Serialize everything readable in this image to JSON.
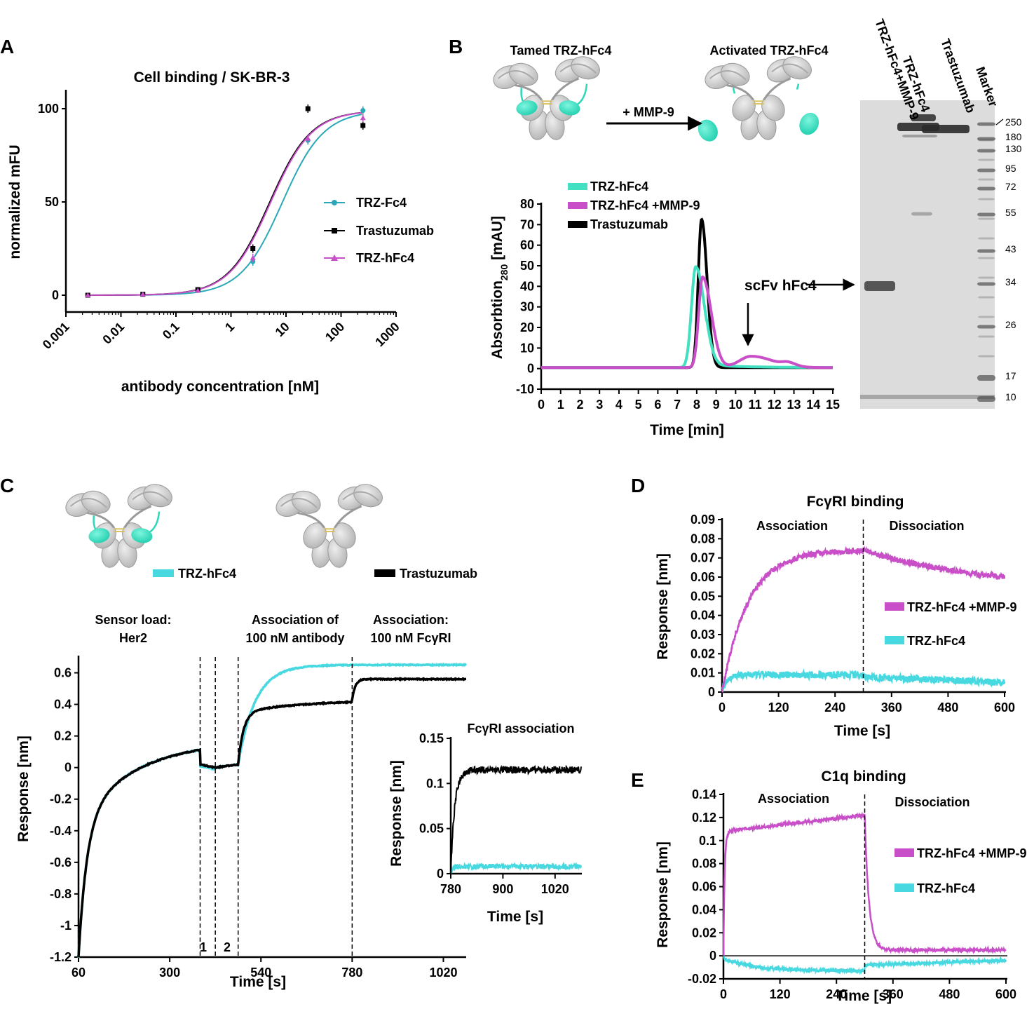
{
  "colors": {
    "trz_fc4": "#2aa8b8",
    "trastuzumab": "#000000",
    "trz_hfc4_magenta": "#c84fc8",
    "trz_hfc4_teal": "#40e0c0",
    "trz_hfc4_cyan": "#48d8e0",
    "gel_bg": "#dcdcdc",
    "antibody_gray": "#cfcfcf",
    "scfv": "#40e8c8"
  },
  "panel_letters": [
    "A",
    "B",
    "C",
    "D",
    "E"
  ],
  "chart_data": [
    {
      "id": "A",
      "type": "scatter",
      "title": "Cell binding / SK-BR-3",
      "xlabel": "antibody concentration [nM]",
      "ylabel": "normalized mFU",
      "xscale": "log",
      "xlim": [
        0.001,
        1000
      ],
      "ylim": [
        -5,
        110
      ],
      "xticks": [
        "0.001",
        "0.01",
        "0.1",
        "1",
        "10",
        "100",
        "1000"
      ],
      "yticks": [
        "0",
        "50",
        "100"
      ],
      "series": [
        {
          "name": "TRZ-Fc4",
          "color": "#2aa8b8",
          "marker": "circle",
          "x": [
            0.0025,
            0.025,
            0.25,
            2.5,
            25,
            250
          ],
          "y": [
            0,
            0.5,
            2.5,
            18,
            83,
            99
          ],
          "ec50": 8.5
        },
        {
          "name": "Trastuzumab",
          "color": "#000000",
          "marker": "square",
          "x": [
            0.0025,
            0.025,
            0.25,
            2.5,
            25,
            250
          ],
          "y": [
            0,
            0.5,
            3,
            25,
            100,
            91
          ],
          "ec50": 5.0
        },
        {
          "name": "TRZ-hFc4",
          "color": "#c84fc8",
          "marker": "triangle",
          "x": [
            0.0025,
            0.025,
            0.25,
            2.5,
            25,
            250
          ],
          "y": [
            0,
            0.5,
            2.5,
            20,
            84,
            95
          ],
          "ec50": 5.2
        }
      ]
    },
    {
      "id": "B-chromatogram",
      "type": "line",
      "xlabel": "Time [min]",
      "ylabel_main": "Absorbtion",
      "ylabel_sub": "280",
      "ylabel_unit": " [mAU]",
      "xlim": [
        0,
        15
      ],
      "ylim": [
        -10,
        80
      ],
      "xticks": [
        "0",
        "1",
        "2",
        "3",
        "4",
        "5",
        "6",
        "7",
        "8",
        "9",
        "10",
        "11",
        "12",
        "13",
        "14",
        "15"
      ],
      "yticks": [
        "-10",
        "0",
        "10",
        "20",
        "30",
        "40",
        "50",
        "60",
        "70",
        "80"
      ],
      "series": [
        {
          "name": "TRZ-hFc4",
          "color": "#40e0c0",
          "peak_time": 7.95,
          "peak_value": 49
        },
        {
          "name": "TRZ-hFc4 +MMP-9",
          "color": "#c84fc8",
          "peak_time": 8.3,
          "peak_value": 44,
          "second_peak_time": 10.8,
          "second_peak_value": 6
        },
        {
          "name": "Trastuzumab",
          "color": "#000000",
          "peak_time": 8.25,
          "peak_value": 72
        }
      ],
      "annotation": "scFv hFc4"
    },
    {
      "id": "B-gel",
      "type": "table",
      "lanes": [
        "TRZ-hFc4+MMP-9",
        "TRZ-hFc4",
        "Trastuzumab",
        "Marker"
      ],
      "marker_kda": [
        "250",
        "180",
        "130",
        "95",
        "72",
        "55",
        "43",
        "34",
        "26",
        "17",
        "10"
      ]
    },
    {
      "id": "C",
      "type": "line",
      "xlabel": "Time [s]",
      "ylabel": "Response [nm]",
      "xlim": [
        60,
        1080
      ],
      "ylim": [
        -1.2,
        0.7
      ],
      "xticks": [
        "60",
        "300",
        "540",
        "780",
        "1020"
      ],
      "yticks": [
        "-1.2",
        "-1",
        "-0.8",
        "-0.6",
        "-0.4",
        "-0.2",
        "0",
        "0.2",
        "0.4",
        "0.6"
      ],
      "phase_lines": [
        380,
        420,
        480,
        780
      ],
      "phase_numbers": [
        "1",
        "2"
      ],
      "phase_labels": [
        {
          "line1": "Sensor load:",
          "line2": "Her2"
        },
        {
          "line1": "Association of",
          "line2": "100 nM antibody"
        },
        {
          "line1": "Association:",
          "line2": "100 nM FcγRI"
        }
      ],
      "series": [
        {
          "name": "TRZ-hFc4",
          "color": "#48d8e0",
          "plateau_after_antibody": 0.65,
          "plateau_after_fcgri": 0.65
        },
        {
          "name": "Trastuzumab",
          "color": "#000000",
          "plateau_after_antibody": 0.43,
          "plateau_after_fcgri": 0.56
        }
      ],
      "inset": {
        "title": "FcγRI association",
        "xlabel": "Time [s]",
        "ylabel": "Response [nm]",
        "xlim": [
          780,
          1080
        ],
        "ylim": [
          0,
          0.15
        ],
        "xticks": [
          "780",
          "900",
          "1020"
        ],
        "yticks": [
          "0",
          "0.05",
          "0.1",
          "0.15"
        ],
        "trastuzumab_plateau": 0.115,
        "trz_hfc4_level": 0.008
      }
    },
    {
      "id": "D",
      "type": "line",
      "title": "FcγRI binding",
      "xlabel": "Time [s]",
      "ylabel": "Response [nm]",
      "xlim": [
        0,
        600
      ],
      "ylim": [
        0,
        0.09
      ],
      "xticks": [
        "0",
        "120",
        "240",
        "360",
        "480",
        "600"
      ],
      "yticks": [
        "0",
        "0.01",
        "0.02",
        "0.03",
        "0.04",
        "0.05",
        "0.06",
        "0.07",
        "0.08",
        "0.09"
      ],
      "phase_line": 300,
      "phase_labels": [
        "Association",
        "Dissociation"
      ],
      "series": [
        {
          "name": "TRZ-hFc4 +MMP-9",
          "color": "#c84fc8",
          "association_max": 0.075,
          "end_value": 0.06
        },
        {
          "name": "TRZ-hFc4",
          "color": "#48d8e0",
          "association_max": 0.009,
          "end_value": 0.005
        }
      ]
    },
    {
      "id": "E",
      "type": "line",
      "title": "C1q binding",
      "xlabel": "Time [s]",
      "ylabel": "Response [nm]",
      "xlim": [
        0,
        600
      ],
      "ylim": [
        -0.02,
        0.14
      ],
      "xticks": [
        "0",
        "120",
        "240",
        "360",
        "480",
        "600"
      ],
      "yticks": [
        "-0.02",
        "0",
        "0.02",
        "0.04",
        "0.06",
        "0.08",
        "0.1",
        "0.12",
        "0.14"
      ],
      "phase_line": 300,
      "phase_labels": [
        "Association",
        "Dissociation"
      ],
      "series": [
        {
          "name": "TRZ-hFc4 +MMP-9",
          "color": "#c84fc8",
          "association_start": 0.11,
          "association_end": 0.122,
          "end_value": 0.005
        },
        {
          "name": "TRZ-hFc4",
          "color": "#48d8e0",
          "association_end": -0.013,
          "end_value": -0.004
        }
      ]
    }
  ],
  "diagrams": {
    "b_tamed_label": "Tamed TRZ-hFc4",
    "b_activated_label": "Activated TRZ-hFc4",
    "b_arrow_label": "+ MMP-9",
    "c_legend_trz": "TRZ-hFc4",
    "c_legend_trastuzumab": "Trastuzumab"
  }
}
